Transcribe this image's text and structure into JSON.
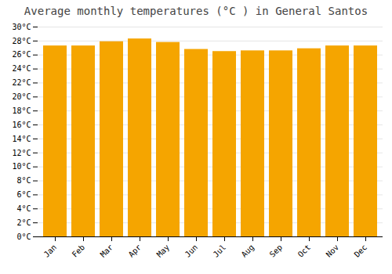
{
  "chart_data": {
    "type": "bar",
    "title": "Average monthly temperatures (°C ) in General Santos",
    "categories": [
      "Jan",
      "Feb",
      "Mar",
      "Apr",
      "May",
      "Jun",
      "Jul",
      "Aug",
      "Sep",
      "Oct",
      "Nov",
      "Dec"
    ],
    "values": [
      27.3,
      27.3,
      27.9,
      28.3,
      27.8,
      26.8,
      26.5,
      26.6,
      26.6,
      26.9,
      27.3,
      27.3
    ],
    "color": "#F5A500",
    "ylim": [
      0,
      30
    ],
    "yticks": [
      {
        "value": 0,
        "label": "0°C"
      },
      {
        "value": 2,
        "label": "2°C"
      },
      {
        "value": 4,
        "label": "4°C"
      },
      {
        "value": 6,
        "label": "6°C"
      },
      {
        "value": 8,
        "label": "8°C"
      },
      {
        "value": 10,
        "label": "10°C"
      },
      {
        "value": 12,
        "label": "12°C"
      },
      {
        "value": 14,
        "label": "14°C"
      },
      {
        "value": 16,
        "label": "16°C"
      },
      {
        "value": 18,
        "label": "18°C"
      },
      {
        "value": 20,
        "label": "20°C"
      },
      {
        "value": 22,
        "label": "22°C"
      },
      {
        "value": 24,
        "label": "24°C"
      },
      {
        "value": 26,
        "label": "26°C"
      },
      {
        "value": 28,
        "label": "28°C"
      },
      {
        "value": 30,
        "label": "30°C"
      }
    ],
    "grid": true
  }
}
